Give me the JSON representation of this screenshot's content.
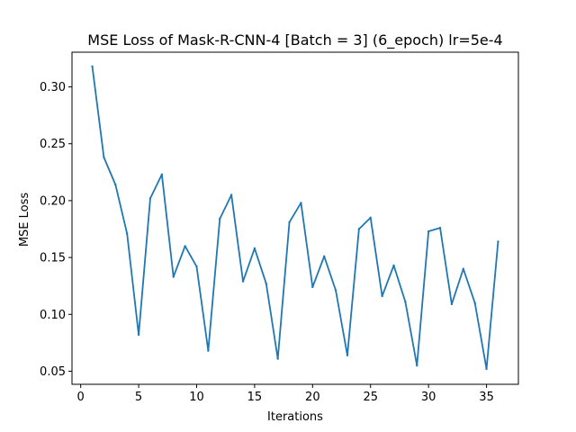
{
  "chart_data": {
    "type": "line",
    "title": "MSE Loss of Mask-R-CNN-4 [Batch = 3] (6_epoch) lr=5e-4",
    "xlabel": "Iterations",
    "ylabel": "MSE Loss",
    "xlim": [
      -0.75,
      37.75
    ],
    "ylim": [
      0.0385,
      0.3305
    ],
    "xticks": [
      0,
      5,
      10,
      15,
      20,
      25,
      30,
      35
    ],
    "yticks": [
      0.05,
      0.1,
      0.15,
      0.2,
      0.25,
      0.3
    ],
    "ytick_labels": [
      "0.05",
      "0.10",
      "0.15",
      "0.20",
      "0.25",
      "0.30"
    ],
    "grid": false,
    "line_color": "#1f77b4",
    "series": [
      {
        "x": [
          1,
          2,
          3,
          4,
          5,
          6,
          7,
          8,
          9,
          10,
          11,
          12,
          13,
          14,
          15,
          16,
          17,
          18,
          19,
          20,
          21,
          22,
          23,
          24,
          25,
          26,
          27,
          28,
          29,
          30,
          31,
          32,
          33,
          34,
          35,
          36
        ],
        "values": [
          0.318,
          0.238,
          0.214,
          0.171,
          0.082,
          0.202,
          0.223,
          0.133,
          0.16,
          0.142,
          0.068,
          0.184,
          0.205,
          0.129,
          0.158,
          0.127,
          0.061,
          0.181,
          0.198,
          0.124,
          0.151,
          0.121,
          0.064,
          0.175,
          0.185,
          0.116,
          0.143,
          0.111,
          0.055,
          0.173,
          0.176,
          0.109,
          0.14,
          0.11,
          0.052,
          0.164
        ]
      }
    ]
  }
}
